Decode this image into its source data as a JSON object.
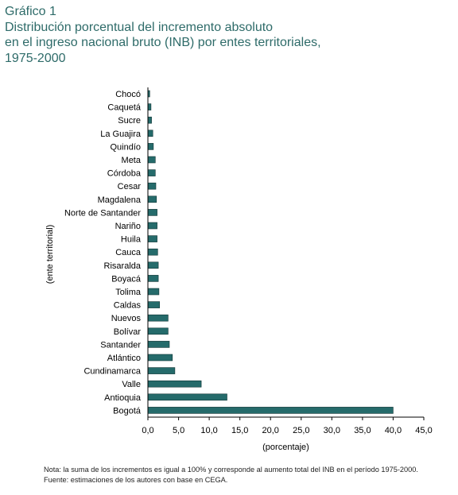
{
  "header": {
    "label": "Gráfico 1",
    "title_lines": [
      "Distribución porcentual del incremento absoluto",
      "en el ingreso nacional bruto (INB) por entes territoriales,",
      "1975-2000"
    ]
  },
  "notes": {
    "note": "Nota: la suma de los incrementos es igual a 100% y corresponde al aumento total del INB en el período 1975-2000.",
    "source": "Fuente: estimaciones de los autores con base en CEGA."
  },
  "colors": {
    "bar": "#256b6b",
    "bar_outline": "#0f3434",
    "title": "#2e6b69",
    "axis": "#000000"
  },
  "chart_data": {
    "type": "bar",
    "orientation": "horizontal",
    "title": "Distribución porcentual del incremento absoluto en el ingreso nacional bruto (INB) por entes territoriales, 1975-2000",
    "xlabel": "(porcentaje)",
    "ylabel": "(ente territorial)",
    "xlim": [
      0,
      45
    ],
    "xticks": [
      0,
      5,
      10,
      15,
      20,
      25,
      30,
      35,
      40,
      45
    ],
    "xtick_labels": [
      "0,0",
      "5,0",
      "10,0",
      "15,0",
      "20,0",
      "25,0",
      "30,0",
      "35,0",
      "40,0",
      "45,0"
    ],
    "grid": false,
    "categories": [
      "Chocó",
      "Caquetá",
      "Sucre",
      "La Guajira",
      "Quindío",
      "Meta",
      "Córdoba",
      "Cesar",
      "Magdalena",
      "Norte de Santander",
      "Nariño",
      "Huila",
      "Cauca",
      "Risaralda",
      "Boyacá",
      "Tolima",
      "Caldas",
      "Nuevos",
      "Bolívar",
      "Santander",
      "Atlántico",
      "Cundinamarca",
      "Valle",
      "Antioquia",
      "Bogotá"
    ],
    "values": [
      0.3,
      0.5,
      0.6,
      0.8,
      0.9,
      1.2,
      1.2,
      1.3,
      1.4,
      1.5,
      1.5,
      1.5,
      1.6,
      1.7,
      1.7,
      1.8,
      1.9,
      3.3,
      3.3,
      3.5,
      4.0,
      4.4,
      8.7,
      12.9,
      40.0
    ]
  }
}
